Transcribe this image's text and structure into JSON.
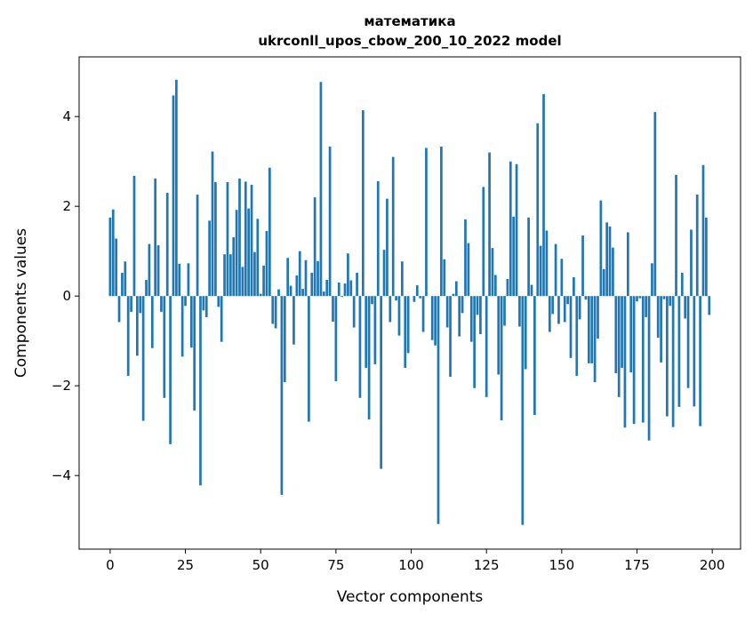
{
  "chart_data": {
    "type": "bar",
    "title": "математика",
    "subtitle": "ukrconll_upos_cbow_200_10_2022 model",
    "xlabel": "Vector components",
    "ylabel": "Components values",
    "xlim": [
      -10.3,
      209.4
    ],
    "ylim": [
      -5.64,
      5.33
    ],
    "xticks": [
      0,
      25,
      50,
      75,
      100,
      125,
      150,
      175,
      200
    ],
    "yticks": [
      -4,
      -2,
      0,
      2,
      4
    ],
    "ytick_labels": [
      "−4",
      "−2",
      "0",
      "2",
      "4"
    ],
    "grid": false,
    "bar_color": "#1f77b4",
    "values": [
      1.75,
      1.93,
      1.28,
      -0.58,
      0.52,
      0.77,
      -1.78,
      -0.35,
      2.68,
      -1.33,
      -0.38,
      -2.78,
      0.36,
      1.16,
      -1.16,
      2.62,
      1.13,
      -0.35,
      -2.27,
      2.3,
      -3.3,
      4.47,
      4.82,
      0.72,
      -1.35,
      -0.22,
      0.73,
      -1.15,
      -2.55,
      2.26,
      -4.22,
      -0.32,
      -0.47,
      1.68,
      3.22,
      2.54,
      -0.24,
      -1.02,
      0.93,
      2.54,
      0.93,
      1.31,
      1.92,
      2.62,
      0.65,
      2.55,
      1.95,
      2.48,
      0.98,
      1.72,
      0.05,
      0.68,
      1.45,
      2.86,
      -0.62,
      -0.72,
      0.15,
      -4.43,
      -1.92,
      0.85,
      0.23,
      -1.08,
      0.46,
      1.0,
      0.16,
      0.8,
      -2.8,
      0.52,
      2.2,
      0.78,
      4.77,
      0.1,
      0.36,
      3.33,
      -0.57,
      -1.9,
      0.3,
      -0.02,
      0.28,
      0.95,
      0.35,
      -0.7,
      0.52,
      -2.27,
      4.14,
      -1.6,
      -2.75,
      -0.18,
      -1.52,
      2.56,
      -3.85,
      1.03,
      2.17,
      -0.58,
      3.1,
      -0.1,
      -0.88,
      0.77,
      -1.6,
      -1.27,
      0.0,
      -0.13,
      0.24,
      -0.05,
      -0.8,
      3.3,
      0.0,
      -0.98,
      -1.1,
      -5.08,
      3.33,
      0.82,
      -0.7,
      -1.8,
      0.05,
      0.33,
      -0.9,
      -0.38,
      1.71,
      1.18,
      -1.02,
      -2.05,
      -0.42,
      -0.85,
      2.43,
      -2.25,
      3.2,
      1.07,
      0.47,
      -1.75,
      -2.77,
      -0.66,
      0.38,
      3.0,
      1.77,
      2.94,
      -0.68,
      -5.1,
      -1.63,
      1.75,
      0.25,
      -2.65,
      3.85,
      1.12,
      4.5,
      1.46,
      -0.8,
      -0.4,
      1.16,
      -0.62,
      0.83,
      -0.58,
      -0.18,
      -1.38,
      0.42,
      -1.78,
      -0.52,
      1.35,
      -0.08,
      -1.5,
      -1.5,
      -1.92,
      -0.95,
      2.13,
      0.6,
      1.64,
      1.55,
      1.08,
      -1.72,
      -2.25,
      -1.6,
      -2.93,
      1.42,
      -1.7,
      -2.85,
      -0.12,
      -0.05,
      -2.82,
      -0.47,
      -3.22,
      0.73,
      4.1,
      -0.93,
      -1.48,
      -0.07,
      -2.68,
      -0.22,
      -2.92,
      2.7,
      -2.47,
      0.52,
      -0.5,
      -2.05,
      1.48,
      -2.46,
      2.26,
      -2.9,
      2.92,
      1.75,
      -0.42
    ]
  }
}
